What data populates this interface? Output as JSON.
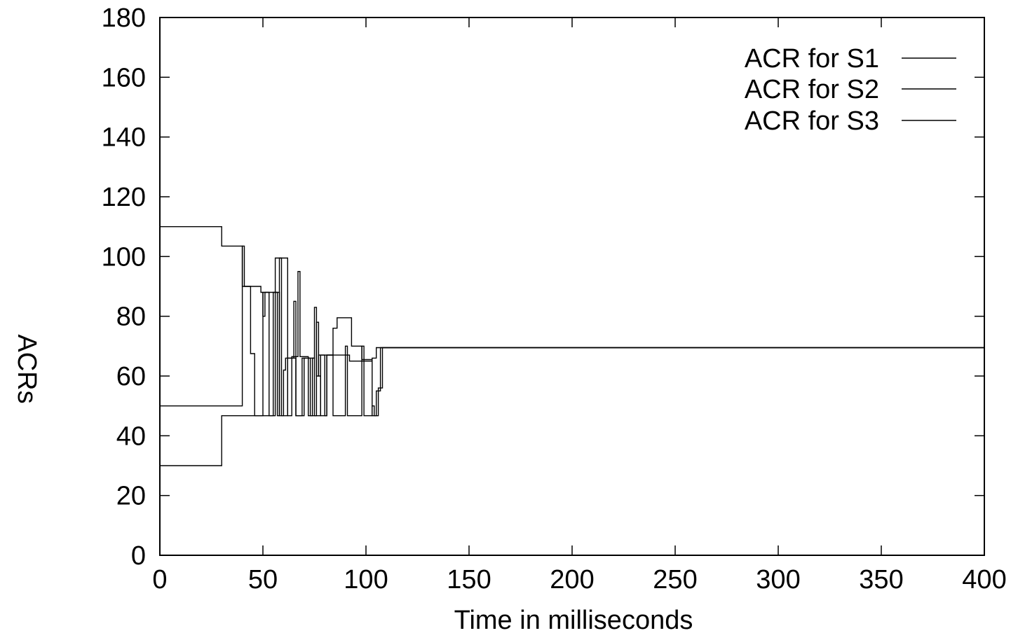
{
  "chart_data": {
    "type": "line",
    "title": "",
    "xlabel": "Time in milliseconds",
    "ylabel": "ACRs",
    "xlim": [
      0,
      400
    ],
    "ylim": [
      0,
      180
    ],
    "xticks": [
      0,
      50,
      100,
      150,
      200,
      250,
      300,
      350,
      400
    ],
    "yticks": [
      0,
      20,
      40,
      60,
      80,
      100,
      120,
      140,
      160,
      180
    ],
    "grid": false,
    "legend_position": "top-right",
    "series": [
      {
        "name": "ACR for S1",
        "color": "#000000",
        "step": true,
        "points": [
          [
            0,
            110
          ],
          [
            30,
            110
          ],
          [
            30,
            103.5
          ],
          [
            40,
            103.5
          ],
          [
            40,
            90
          ],
          [
            44,
            90
          ],
          [
            44,
            67.5
          ],
          [
            46,
            67.5
          ],
          [
            46,
            46.7
          ],
          [
            55,
            46.7
          ],
          [
            55,
            88
          ],
          [
            58,
            88
          ],
          [
            58,
            46.7
          ],
          [
            62,
            46.7
          ],
          [
            62,
            66
          ],
          [
            65,
            66
          ],
          [
            65,
            85
          ],
          [
            66,
            85
          ],
          [
            66,
            46.7
          ],
          [
            70,
            46.7
          ],
          [
            70,
            66
          ],
          [
            73,
            66
          ],
          [
            73,
            46.7
          ],
          [
            76,
            46.7
          ],
          [
            76,
            78
          ],
          [
            77,
            78
          ],
          [
            77,
            60
          ],
          [
            78,
            60
          ],
          [
            78,
            46.7
          ],
          [
            81,
            46.7
          ],
          [
            81,
            67
          ],
          [
            84,
            67
          ],
          [
            84,
            46.7
          ],
          [
            90,
            46.7
          ],
          [
            90,
            70
          ],
          [
            91,
            70
          ],
          [
            91,
            46.7
          ],
          [
            98,
            46.7
          ],
          [
            98,
            70
          ],
          [
            99,
            70
          ],
          [
            99,
            46.7
          ],
          [
            103,
            46.7
          ],
          [
            103,
            50
          ],
          [
            104,
            50
          ],
          [
            104,
            46.7
          ],
          [
            105,
            46.7
          ],
          [
            105,
            55
          ],
          [
            107,
            55
          ],
          [
            107,
            69.5
          ],
          [
            400,
            69.5
          ]
        ]
      },
      {
        "name": "ACR for S2",
        "color": "#000000",
        "step": true,
        "points": [
          [
            0,
            50
          ],
          [
            40,
            50
          ],
          [
            40,
            103.5
          ],
          [
            41,
            103.5
          ],
          [
            41,
            90
          ],
          [
            49,
            90
          ],
          [
            49,
            88
          ],
          [
            50,
            88
          ],
          [
            50,
            80
          ],
          [
            51,
            80
          ],
          [
            51,
            88
          ],
          [
            57,
            88
          ],
          [
            57,
            46.7
          ],
          [
            58,
            46.7
          ],
          [
            58,
            99.5
          ],
          [
            62,
            99.5
          ],
          [
            62,
            46.7
          ],
          [
            64,
            46.7
          ],
          [
            64,
            66.5
          ],
          [
            67,
            66.5
          ],
          [
            67,
            95
          ],
          [
            68,
            95
          ],
          [
            68,
            66.5
          ],
          [
            72,
            66.5
          ],
          [
            72,
            46.7
          ],
          [
            74,
            46.7
          ],
          [
            74,
            66
          ],
          [
            75,
            66
          ],
          [
            75,
            83
          ],
          [
            76,
            83
          ],
          [
            76,
            60
          ],
          [
            77,
            60
          ],
          [
            77,
            67
          ],
          [
            80,
            67
          ],
          [
            80,
            46.7
          ],
          [
            81,
            46.7
          ],
          [
            81,
            67
          ],
          [
            92,
            67
          ],
          [
            92,
            65
          ],
          [
            103,
            65
          ],
          [
            103,
            66
          ],
          [
            105,
            66
          ],
          [
            105,
            69.5
          ],
          [
            400,
            69.5
          ]
        ]
      },
      {
        "name": "ACR for S3",
        "color": "#000000",
        "step": true,
        "points": [
          [
            0,
            30
          ],
          [
            30,
            30
          ],
          [
            30,
            46.7
          ],
          [
            50,
            46.7
          ],
          [
            50,
            88
          ],
          [
            53,
            88
          ],
          [
            53,
            46.7
          ],
          [
            56,
            46.7
          ],
          [
            56,
            99.5
          ],
          [
            59,
            99.5
          ],
          [
            59,
            46.7
          ],
          [
            60,
            46.7
          ],
          [
            60,
            62
          ],
          [
            61,
            62
          ],
          [
            61,
            66
          ],
          [
            66,
            66
          ],
          [
            66,
            46.7
          ],
          [
            69,
            46.7
          ],
          [
            69,
            66
          ],
          [
            75,
            66
          ],
          [
            75,
            46.7
          ],
          [
            78,
            46.7
          ],
          [
            78,
            67
          ],
          [
            84,
            67
          ],
          [
            84,
            76
          ],
          [
            86,
            76
          ],
          [
            86,
            79.5
          ],
          [
            93,
            79.5
          ],
          [
            93,
            70
          ],
          [
            98,
            70
          ],
          [
            98,
            65.5
          ],
          [
            103,
            65.5
          ],
          [
            103,
            46.7
          ],
          [
            106,
            46.7
          ],
          [
            106,
            56
          ],
          [
            108,
            56
          ],
          [
            108,
            69.5
          ],
          [
            400,
            69.5
          ]
        ]
      }
    ]
  }
}
